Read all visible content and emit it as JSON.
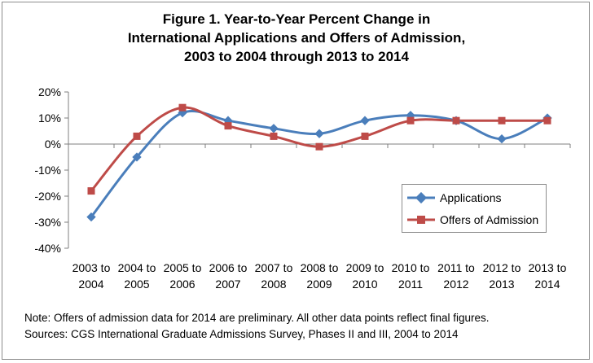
{
  "chart_data": {
    "type": "line",
    "title_lines": [
      "Figure 1. Year-to-Year Percent Change in",
      "International Applications and Offers of Admission,",
      "2003 to 2004 through 2013 to 2014"
    ],
    "categories": [
      [
        "2003 to",
        "2004"
      ],
      [
        "2004 to",
        "2005"
      ],
      [
        "2005 to",
        "2006"
      ],
      [
        "2006 to",
        "2007"
      ],
      [
        "2007 to",
        "2008"
      ],
      [
        "2008 to",
        "2009"
      ],
      [
        "2009 to",
        "2010"
      ],
      [
        "2010 to",
        "2011"
      ],
      [
        "2011 to",
        "2012"
      ],
      [
        "2012 to",
        "2013"
      ],
      [
        "2013 to",
        "2014"
      ]
    ],
    "y_ticks": [
      "20%",
      "10%",
      "0%",
      "-10%",
      "-20%",
      "-30%",
      "-40%"
    ],
    "ylim": [
      -40,
      20
    ],
    "y_unit": "%",
    "series": [
      {
        "name": "Applications",
        "color": "#4a7ebb",
        "marker": "diamond",
        "values": [
          -28,
          -5,
          12,
          9,
          6,
          4,
          9,
          11,
          9,
          2,
          10
        ]
      },
      {
        "name": "Offers of Admission",
        "color": "#be4b48",
        "marker": "square",
        "values": [
          -18,
          3,
          14,
          7,
          3,
          -1,
          3,
          9,
          9,
          9,
          9
        ]
      }
    ],
    "legend_position": "right",
    "grid": false
  },
  "notes": [
    "Note: Offers of admission data for 2014 are preliminary. All other data points reflect final figures.",
    "Sources: CGS International Graduate Admissions Survey, Phases II and III, 2004 to 2014"
  ]
}
